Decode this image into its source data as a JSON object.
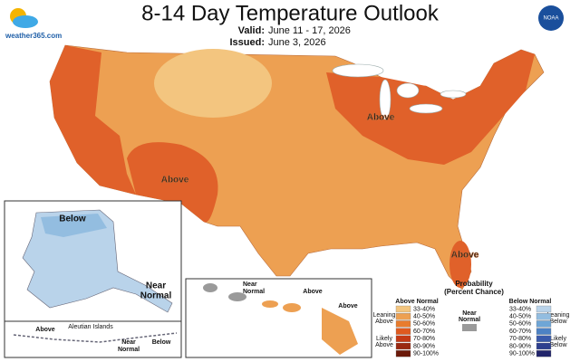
{
  "header": {
    "title": "8-14 Day Temperature Outlook",
    "valid_label": "Valid:",
    "valid_dates": "June 11 - 17, 2026",
    "issued_label": "Issued:",
    "issued_date": "June 3, 2026"
  },
  "logos": {
    "site": "weather365.com",
    "agency": "NOAA"
  },
  "map_labels": {
    "southwest": "Above",
    "great_lakes": "Above",
    "florida": "Above",
    "alaska_north": "Below",
    "alaska_south": [
      "Near",
      "Normal"
    ],
    "aleutian_west": "Above",
    "aleutian_name": "Aleutian Islands",
    "aleutian_mid": [
      "Near",
      "Normal"
    ],
    "aleutian_east": "Below",
    "hawaii_west": [
      "Near",
      "Normal"
    ],
    "hawaii_mid": "Above",
    "hawaii_east": "Above"
  },
  "legend": {
    "title": [
      "Probability",
      "(Percent Chance)"
    ],
    "above": {
      "heading": "Above Normal",
      "levels": [
        "33-40%",
        "40-50%",
        "50-60%",
        "60-70%",
        "70-80%",
        "80-90%",
        "90-100%"
      ],
      "colors": [
        "#f3c57f",
        "#eda052",
        "#e87c2e",
        "#df5a1f",
        "#c43a15",
        "#9a2810",
        "#6b1a0a"
      ],
      "leaning": [
        "Leaning",
        "Above"
      ],
      "likely": [
        "Likely",
        "Above"
      ]
    },
    "below": {
      "heading": "Below Normal",
      "levels": [
        "33-40%",
        "40-50%",
        "50-60%",
        "60-70%",
        "70-80%",
        "80-90%",
        "90-100%"
      ],
      "colors": [
        "#b9d3ea",
        "#93bde0",
        "#6fa6d6",
        "#4d82c4",
        "#3a5aab",
        "#2e3f8f",
        "#22256b"
      ],
      "leaning": [
        "Leaning",
        "Below"
      ],
      "likely": [
        "Likely",
        "Below"
      ]
    },
    "near": {
      "label": [
        "Near",
        "Normal"
      ],
      "color": "#9a9a9a"
    }
  }
}
